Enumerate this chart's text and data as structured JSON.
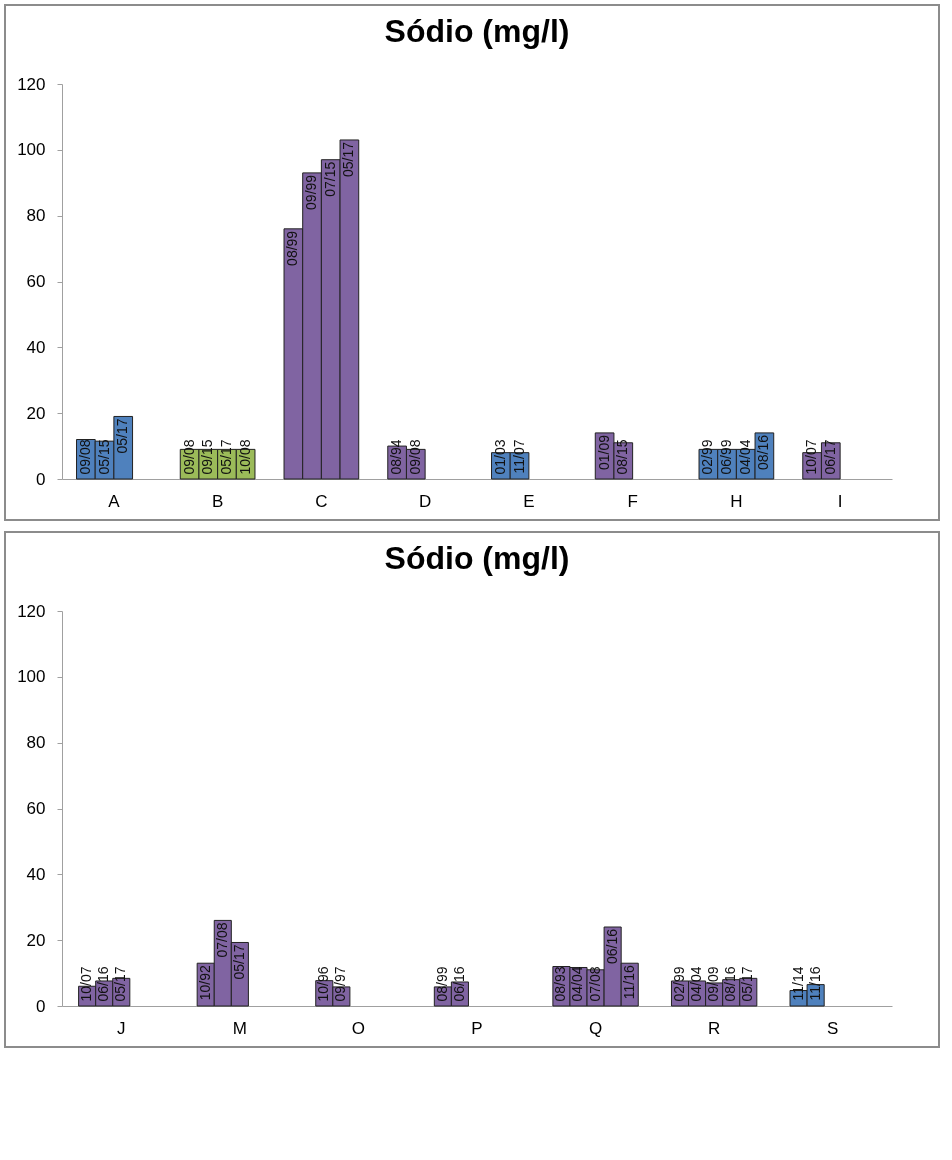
{
  "chart_data": [
    {
      "type": "bar",
      "title": "Sódio (mg/l)",
      "categories": [
        "A",
        "B",
        "C",
        "D",
        "E",
        "F",
        "H",
        "I"
      ],
      "ylim": [
        0,
        120
      ],
      "yticks": [
        0,
        20,
        40,
        60,
        80,
        100,
        120
      ],
      "grid": false,
      "series": [
        {
          "values": [
            12,
            9,
            76,
            10,
            8,
            14,
            9,
            8
          ],
          "colors": [
            "#4f81bd",
            "#9bbb59",
            "#8064a2",
            "#8064a2",
            "#4f81bd",
            "#8064a2",
            "#4f81bd",
            "#8064a2"
          ]
        },
        {
          "values": [
            11.5,
            9,
            93,
            9,
            8,
            11,
            9,
            11
          ],
          "colors": [
            "#4f81bd",
            "#9bbb59",
            "#8064a2",
            "#8064a2",
            "#4f81bd",
            "#8064a2",
            "#4f81bd",
            "#8064a2"
          ]
        },
        {
          "values": [
            19,
            9,
            97,
            null,
            null,
            null,
            9,
            null
          ],
          "colors": [
            "#4f81bd",
            "#9bbb59",
            "#8064a2",
            null,
            null,
            null,
            "#4f81bd",
            null
          ]
        },
        {
          "values": [
            null,
            9,
            103,
            null,
            null,
            null,
            14,
            null
          ],
          "colors": [
            null,
            "#9bbb59",
            "#8064a2",
            null,
            null,
            null,
            "#4f81bd",
            null
          ]
        }
      ],
      "annotations": [
        "09/08",
        "05/15",
        "05/17",
        "09/08",
        "09/15",
        "05/17",
        "10/08",
        "08/99",
        "09/99",
        "07/15",
        "05/17",
        "08/94",
        "09/08",
        "01/03",
        "11/07",
        "01/09",
        "08/15",
        "02/99",
        "06/99",
        "04/04",
        "08/16",
        "10/07",
        "06/17"
      ]
    },
    {
      "type": "bar",
      "title": "Sódio (mg/l)",
      "categories": [
        "J",
        "M",
        "O",
        "P",
        "Q",
        "R",
        "S"
      ],
      "ylim": [
        0,
        120
      ],
      "yticks": [
        0,
        20,
        40,
        60,
        80,
        100,
        120
      ],
      "grid": false,
      "series": [
        {
          "values": [
            6,
            13,
            7.7,
            5.8,
            12,
            7.6,
            4.7
          ],
          "colors": [
            "#8064a2",
            "#8064a2",
            "#8064a2",
            "#8064a2",
            "#8064a2",
            "#8064a2",
            "#4f81bd"
          ]
        },
        {
          "values": [
            7.6,
            26,
            5.8,
            7.3,
            11.7,
            7.6,
            6.5
          ],
          "colors": [
            "#8064a2",
            "#8064a2",
            "#8064a2",
            "#8064a2",
            "#8064a2",
            "#8064a2",
            "#4f81bd"
          ]
        },
        {
          "values": [
            8.4,
            19.3,
            null,
            null,
            11,
            7,
            null
          ],
          "colors": [
            "#8064a2",
            "#8064a2",
            null,
            null,
            "#8064a2",
            "#8064a2",
            null
          ]
        },
        {
          "values": [
            null,
            null,
            null,
            null,
            24,
            8,
            null
          ],
          "colors": [
            null,
            null,
            null,
            null,
            "#8064a2",
            "#8064a2",
            null
          ]
        },
        {
          "values": [
            null,
            null,
            null,
            null,
            13,
            8.4,
            null
          ],
          "colors": [
            null,
            null,
            null,
            null,
            "#8064a2",
            "#8064a2",
            null
          ]
        }
      ],
      "annotations": [
        "10/07",
        "06/16",
        "05/17",
        "10/92",
        "07/08",
        "05/17",
        "10/96",
        "09/97",
        "08/99",
        "06/16",
        "08/93",
        "04/04",
        "07/08",
        "06/16",
        "11/16",
        "02/99",
        "04/04",
        "09/09",
        "08/16",
        "05/17",
        "11/14",
        "11/16"
      ]
    }
  ]
}
